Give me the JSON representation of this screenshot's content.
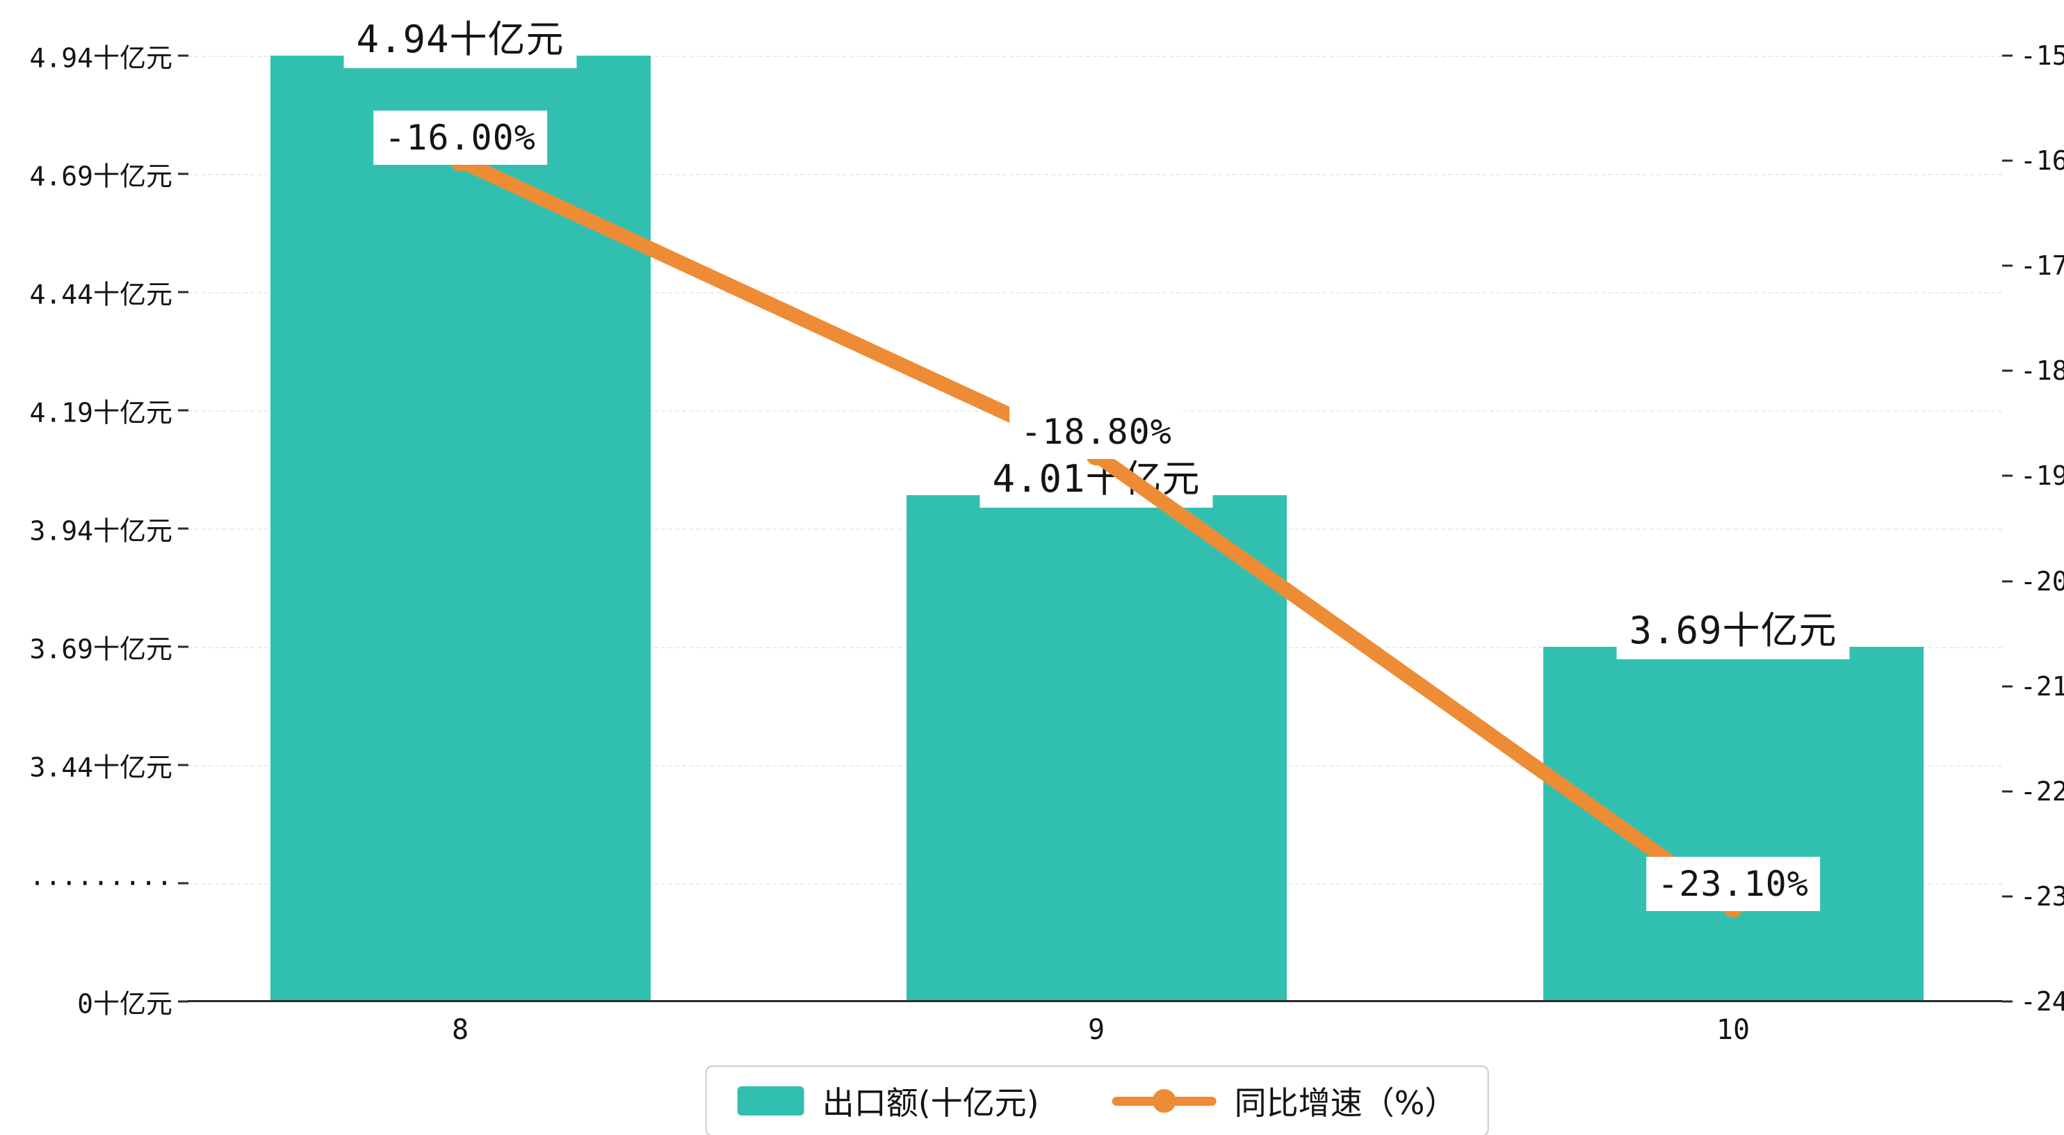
{
  "chart_data": {
    "type": "bar",
    "title": "",
    "categories": [
      "8",
      "9",
      "10"
    ],
    "series": [
      {
        "name": "出口额(十亿元)",
        "type": "bar",
        "unit": "十亿元",
        "values": [
          4.94,
          4.01,
          3.69
        ],
        "value_labels": [
          "4.94十亿元",
          "4.01十亿元",
          "3.69十亿元"
        ],
        "color": "#31c0b0"
      },
      {
        "name": "同比增速（%）",
        "type": "line",
        "unit": "%",
        "values": [
          -16.0,
          -18.8,
          -23.1
        ],
        "value_labels": [
          "-16.00%",
          "-18.80%",
          "-23.10%"
        ],
        "color": "#ed8c35"
      }
    ],
    "left_axis": {
      "tick_labels": [
        "4.94十亿元",
        "4.69十亿元",
        "4.44十亿元",
        "4.19十亿元",
        "3.94十亿元",
        "3.69十亿元",
        "3.44十亿元",
        "·········",
        "0十亿元"
      ],
      "axis_break": true,
      "visible_range_above_break": [
        3.44,
        4.94
      ],
      "tick_step": 0.25
    },
    "right_axis": {
      "tick_labels": [
        "-15",
        "-16",
        "-17",
        "-18",
        "-19",
        "-20",
        "-21",
        "-22",
        "-23",
        "-24"
      ],
      "range": [
        -24,
        -15
      ]
    },
    "grid": "horizontal-dashed",
    "legend": {
      "position": "bottom",
      "items": [
        {
          "label": "出口额(十亿元)",
          "marker": "bar-swatch",
          "color": "#31c0b0"
        },
        {
          "label": "同比增速（%）",
          "marker": "line-dot",
          "color": "#ed8c35"
        }
      ]
    }
  }
}
